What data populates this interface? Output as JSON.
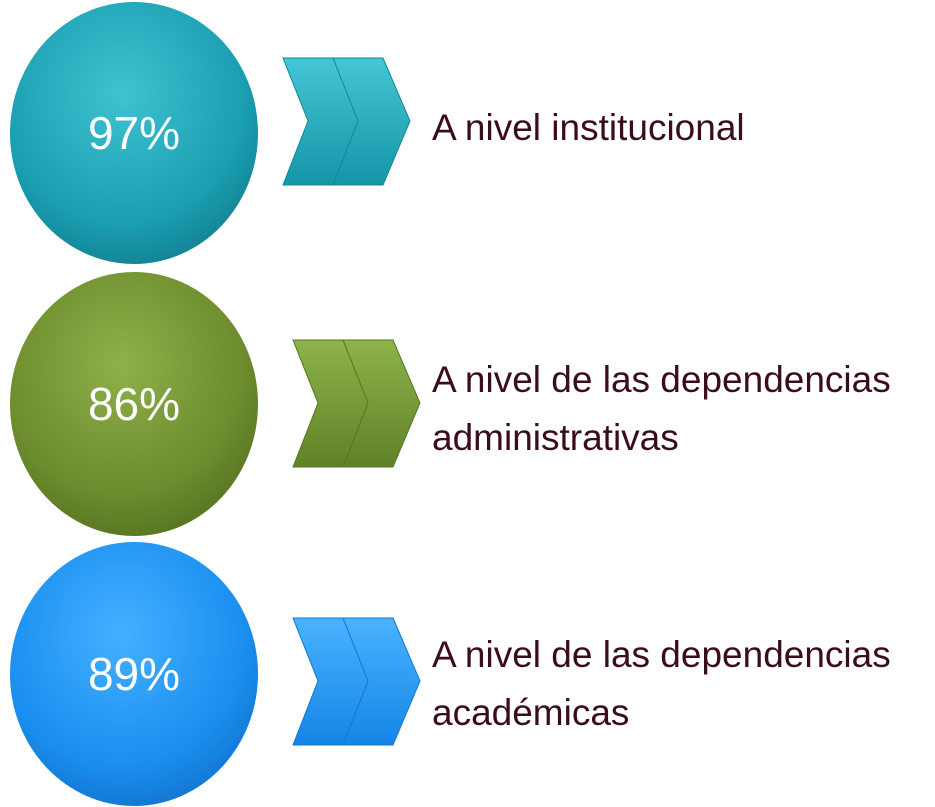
{
  "items": [
    {
      "value": "97%",
      "label": [
        "A nivel institucional"
      ]
    },
    {
      "value": "86%",
      "label": [
        "A nivel de las dependencias",
        "administrativas"
      ]
    },
    {
      "value": "89%",
      "label": [
        "A nivel de las dependencias",
        "académicas"
      ]
    }
  ]
}
